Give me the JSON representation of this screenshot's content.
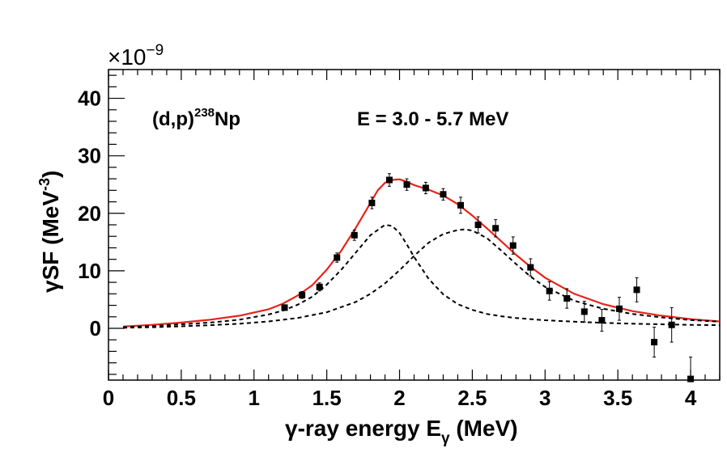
{
  "chart_data": {
    "type": "scatter",
    "xlabel": "γ-ray energy E",
    "xlabel_sub": "γ",
    "xlabel_unit": " (MeV)",
    "ylabel": "γSF (MeV",
    "ylabel_sup": "-3",
    "ylabel_close": ")",
    "y_multiplier": "×10",
    "y_multiplier_exp": "−9",
    "annotations": [
      {
        "text": "(d,p)",
        "sup": "238",
        "tail": "Np"
      },
      {
        "text": "E = 3.0 - 5.7 MeV"
      }
    ],
    "xlim": [
      0,
      4.2
    ],
    "ylim": [
      -9,
      45
    ],
    "xticks": [
      0,
      0.5,
      1,
      1.5,
      2,
      2.5,
      3,
      3.5,
      4
    ],
    "xtick_labels": [
      "0",
      "0.5",
      "1",
      "1.5",
      "2",
      "2.5",
      "3",
      "3.5",
      "4"
    ],
    "yticks": [
      0,
      10,
      20,
      30,
      40
    ],
    "ytick_labels": [
      "0",
      "10",
      "20",
      "30",
      "40"
    ],
    "grid": false,
    "series": [
      {
        "kind": "points",
        "color": "#000000",
        "x": [
          1.21,
          1.33,
          1.45,
          1.57,
          1.69,
          1.81,
          1.93,
          2.05,
          2.18,
          2.3,
          2.42,
          2.54,
          2.66,
          2.78,
          2.9,
          3.03,
          3.15,
          3.27,
          3.39,
          3.51,
          3.63,
          3.75,
          3.87,
          4.0
        ],
        "y": [
          3.6,
          5.8,
          7.2,
          12.3,
          16.2,
          21.8,
          25.8,
          25.0,
          24.4,
          23.3,
          21.4,
          18.0,
          17.4,
          14.4,
          10.6,
          6.5,
          5.2,
          2.9,
          1.4,
          3.4,
          6.7,
          -2.4,
          0.6,
          -8.8
        ],
        "err": [
          0.5,
          0.6,
          0.7,
          0.8,
          0.9,
          1.0,
          1.1,
          1.0,
          1.0,
          1.0,
          1.4,
          1.4,
          1.5,
          1.5,
          1.5,
          1.6,
          1.7,
          1.8,
          1.9,
          2.0,
          2.1,
          2.6,
          3.0,
          3.8
        ]
      },
      {
        "kind": "line",
        "style": "solid",
        "color": "#e8231a",
        "x": [
          0.1,
          0.3,
          0.5,
          0.7,
          0.9,
          1.1,
          1.2,
          1.3,
          1.4,
          1.5,
          1.6,
          1.7,
          1.8,
          1.85,
          1.9,
          1.95,
          2.0,
          2.05,
          2.1,
          2.2,
          2.3,
          2.4,
          2.5,
          2.6,
          2.7,
          2.8,
          2.9,
          3.0,
          3.2,
          3.4,
          3.6,
          3.8,
          4.0,
          4.2
        ],
        "y": [
          0.3,
          0.6,
          1.0,
          1.5,
          2.2,
          3.3,
          4.3,
          5.7,
          7.5,
          10.2,
          13.5,
          17.5,
          21.8,
          24.0,
          25.3,
          25.8,
          25.9,
          25.5,
          24.9,
          24.1,
          23.1,
          21.6,
          19.6,
          17.4,
          15.1,
          12.8,
          10.7,
          8.8,
          6.0,
          4.2,
          3.0,
          2.2,
          1.6,
          1.2
        ]
      },
      {
        "kind": "line",
        "style": "dashed",
        "color": "#000000",
        "x": [
          0.1,
          0.3,
          0.5,
          0.7,
          0.9,
          1.1,
          1.2,
          1.3,
          1.4,
          1.5,
          1.6,
          1.7,
          1.8,
          1.9,
          1.95,
          2.0,
          2.05,
          2.1,
          2.2,
          2.3,
          2.4,
          2.5,
          2.6,
          2.7,
          2.8,
          2.9,
          3.0,
          3.2,
          3.4,
          3.6,
          3.8,
          4.0,
          4.2
        ],
        "y": [
          0.2,
          0.4,
          0.7,
          1.0,
          1.5,
          2.4,
          3.1,
          4.1,
          5.5,
          7.6,
          10.2,
          13.2,
          16.2,
          18.0,
          17.8,
          16.6,
          14.6,
          12.4,
          8.6,
          5.9,
          4.2,
          3.2,
          2.5,
          2.1,
          1.8,
          1.6,
          1.4,
          1.15,
          0.95,
          0.8,
          0.7,
          0.6,
          0.55
        ]
      },
      {
        "kind": "line",
        "style": "dashed",
        "color": "#000000",
        "x": [
          0.1,
          0.3,
          0.5,
          0.7,
          0.9,
          1.1,
          1.3,
          1.5,
          1.7,
          1.8,
          1.9,
          2.0,
          2.1,
          2.2,
          2.3,
          2.4,
          2.45,
          2.5,
          2.6,
          2.7,
          2.8,
          2.9,
          3.0,
          3.2,
          3.4,
          3.6,
          3.8,
          4.0,
          4.2
        ],
        "y": [
          0.1,
          0.2,
          0.35,
          0.55,
          0.8,
          1.2,
          1.8,
          2.8,
          4.6,
          6.0,
          7.8,
          10.1,
          12.6,
          14.9,
          16.4,
          17.1,
          17.2,
          17.0,
          15.7,
          13.5,
          11.2,
          9.0,
          7.2,
          4.8,
          3.4,
          2.5,
          1.9,
          1.45,
          1.15
        ]
      }
    ]
  }
}
